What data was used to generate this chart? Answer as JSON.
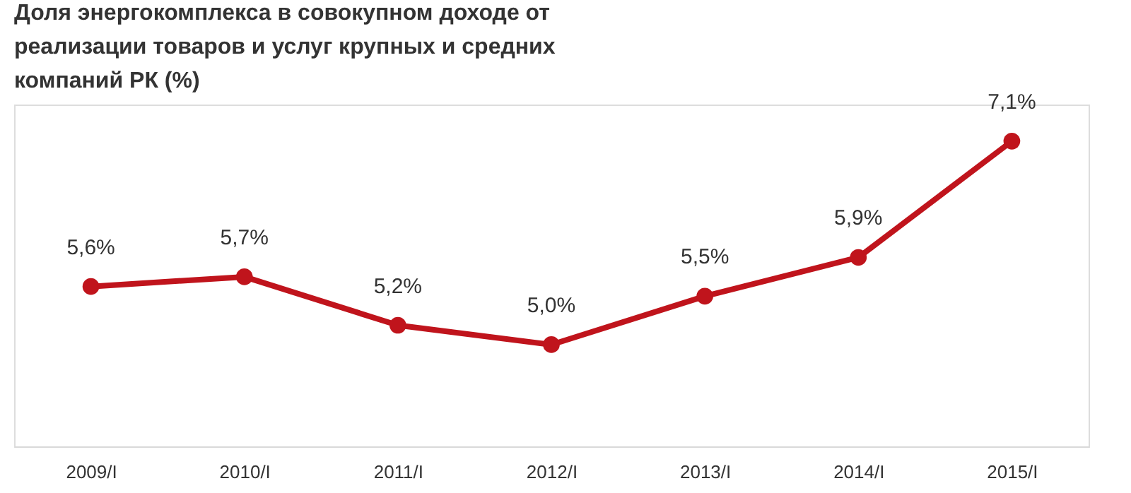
{
  "chart_data": {
    "type": "line",
    "title": "Доля энергокомплекса в совокупном доходе от реализации товаров и услуг крупных и средних компаний РК (%)",
    "categories": [
      "2009/I",
      "2010/I",
      "2011/I",
      "2012/I",
      "2013/I",
      "2014/I",
      "2015/I"
    ],
    "series": [
      {
        "color": "#c0141c",
        "values": [
          5.6,
          5.7,
          5.2,
          5.0,
          5.5,
          5.9,
          7.1
        ],
        "value_labels": [
          "5,6%",
          "5,7%",
          "5,2%",
          "5,0%",
          "5,5%",
          "5,9%",
          "7,1%"
        ]
      }
    ],
    "marker": "circle",
    "line_style": "solid",
    "grid": false,
    "legend": false,
    "tick_labels": "x"
  }
}
